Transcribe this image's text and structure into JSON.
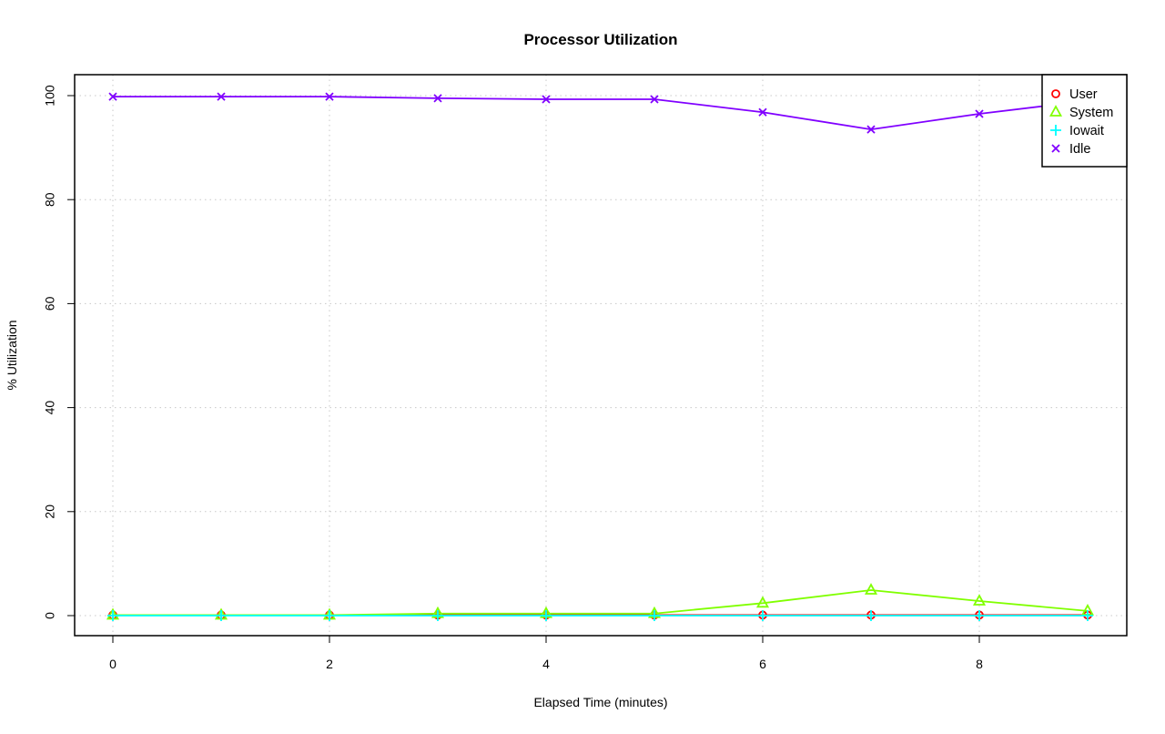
{
  "chart_data": {
    "type": "line",
    "title": "Processor Utilization",
    "xlabel": "Elapsed Time (minutes)",
    "ylabel": "% Utilization",
    "xlim": [
      0,
      9
    ],
    "ylim": [
      0,
      100
    ],
    "x_ticks": [
      "0",
      "2",
      "4",
      "6",
      "8"
    ],
    "y_ticks": [
      "0",
      "20",
      "40",
      "60",
      "80",
      "100"
    ],
    "grid": true,
    "legend_position": "top-right",
    "x": [
      0,
      1,
      2,
      3,
      4,
      5,
      6,
      7,
      8,
      9
    ],
    "series": [
      {
        "name": "User",
        "color": "#ff0000",
        "marker": "circle",
        "values": [
          0.1,
          0.1,
          0.1,
          0.1,
          0.1,
          0.1,
          0.1,
          0.1,
          0.1,
          0.1
        ]
      },
      {
        "name": "System",
        "color": "#80ff00",
        "marker": "triangle",
        "values": [
          0.1,
          0.1,
          0.1,
          0.4,
          0.4,
          0.4,
          2.4,
          4.9,
          2.8,
          0.9
        ]
      },
      {
        "name": "Iowait",
        "color": "#00ffff",
        "marker": "plus",
        "values": [
          0,
          0,
          0,
          0,
          0,
          0,
          0,
          0,
          0,
          0
        ]
      },
      {
        "name": "Idle",
        "color": "#8000ff",
        "marker": "cross",
        "values": [
          99.8,
          99.8,
          99.8,
          99.5,
          99.3,
          99.3,
          96.8,
          93.5,
          96.5,
          99.0
        ]
      }
    ]
  }
}
